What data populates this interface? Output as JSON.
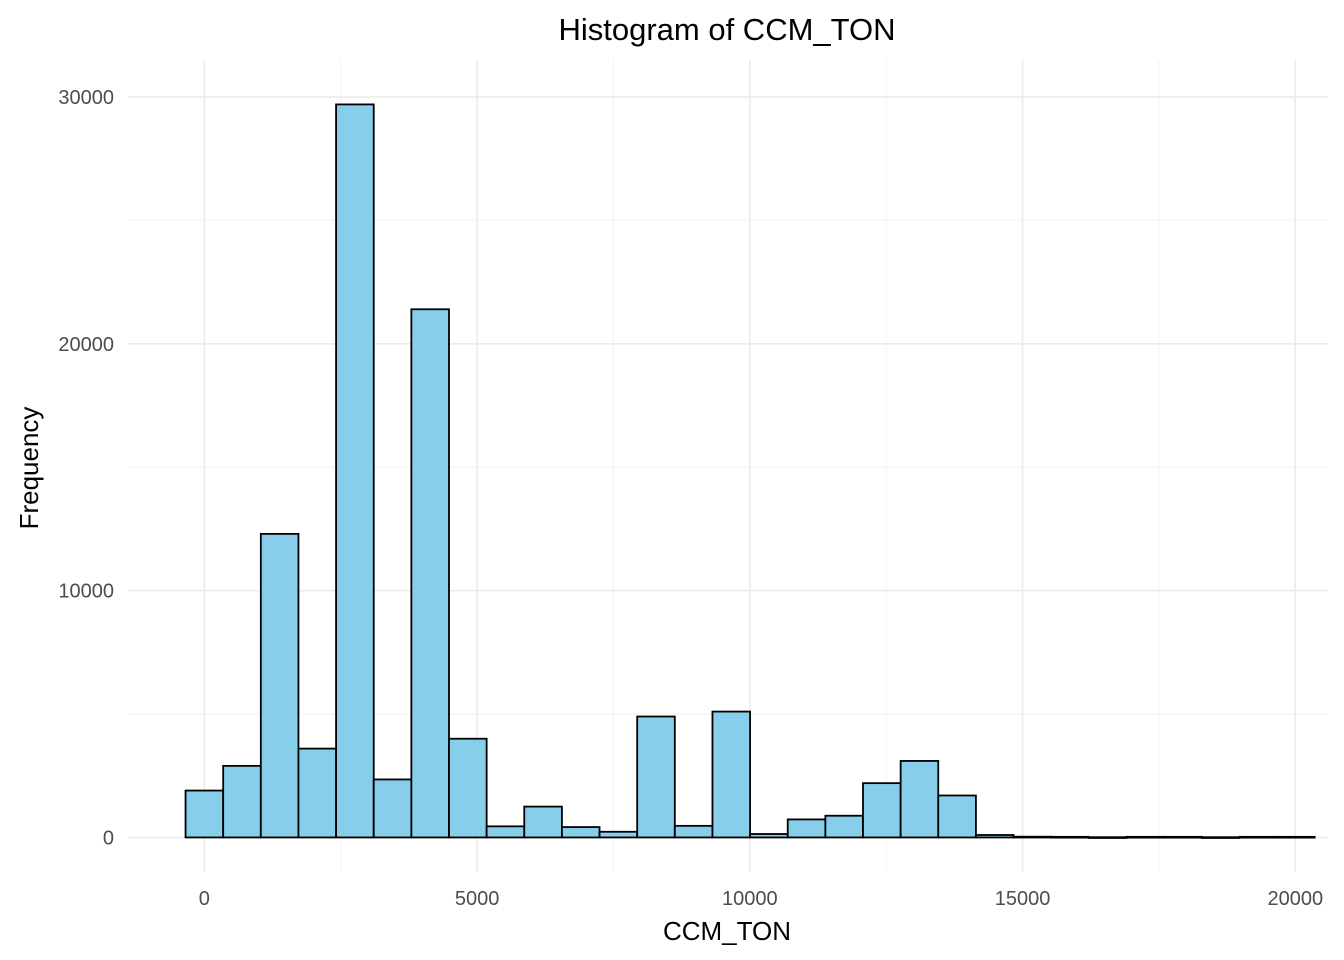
{
  "chart_data": {
    "type": "bar",
    "title": "Histogram of CCM_TON",
    "xlabel": "CCM_TON",
    "ylabel": "Frequency",
    "bar_color": "#87ceeb",
    "bar_border_color": "#000000",
    "grid": true,
    "xlim": [
      -1400,
      20600
    ],
    "ylim": [
      -1400,
      31500
    ],
    "x_ticks": [
      0,
      5000,
      10000,
      15000,
      20000
    ],
    "x_tick_labels": [
      "0",
      "5000",
      "10000",
      "15000",
      "20000"
    ],
    "y_ticks": [
      0,
      10000,
      20000,
      30000
    ],
    "y_tick_labels": [
      "0",
      "10000",
      "20000",
      "30000"
    ],
    "bin_width": 690,
    "bins": [
      {
        "x0": -345,
        "x1": 345,
        "count": 1900
      },
      {
        "x0": 345,
        "x1": 1035,
        "count": 2900
      },
      {
        "x0": 1035,
        "x1": 1725,
        "count": 12300
      },
      {
        "x0": 1725,
        "x1": 2415,
        "count": 3600
      },
      {
        "x0": 2415,
        "x1": 3105,
        "count": 29700
      },
      {
        "x0": 3105,
        "x1": 3795,
        "count": 2350
      },
      {
        "x0": 3795,
        "x1": 4485,
        "count": 21400
      },
      {
        "x0": 4485,
        "x1": 5175,
        "count": 4000
      },
      {
        "x0": 5175,
        "x1": 5865,
        "count": 450
      },
      {
        "x0": 5865,
        "x1": 6555,
        "count": 1250
      },
      {
        "x0": 6555,
        "x1": 7245,
        "count": 420
      },
      {
        "x0": 7245,
        "x1": 7935,
        "count": 230
      },
      {
        "x0": 7935,
        "x1": 8625,
        "count": 4900
      },
      {
        "x0": 8625,
        "x1": 9315,
        "count": 470
      },
      {
        "x0": 9315,
        "x1": 10005,
        "count": 5100
      },
      {
        "x0": 10005,
        "x1": 10695,
        "count": 140
      },
      {
        "x0": 10695,
        "x1": 11385,
        "count": 730
      },
      {
        "x0": 11385,
        "x1": 12075,
        "count": 880
      },
      {
        "x0": 12075,
        "x1": 12765,
        "count": 2200
      },
      {
        "x0": 12765,
        "x1": 13455,
        "count": 3100
      },
      {
        "x0": 13455,
        "x1": 14145,
        "count": 1700
      },
      {
        "x0": 14145,
        "x1": 14835,
        "count": 100
      },
      {
        "x0": 14835,
        "x1": 15525,
        "count": 30
      },
      {
        "x0": 15525,
        "x1": 16215,
        "count": 25
      },
      {
        "x0": 16215,
        "x1": 16905,
        "count": 10
      },
      {
        "x0": 16905,
        "x1": 17595,
        "count": 25
      },
      {
        "x0": 17595,
        "x1": 18285,
        "count": 25
      },
      {
        "x0": 18285,
        "x1": 18975,
        "count": 10
      },
      {
        "x0": 18975,
        "x1": 19665,
        "count": 25
      },
      {
        "x0": 19665,
        "x1": 20355,
        "count": 25
      }
    ]
  }
}
